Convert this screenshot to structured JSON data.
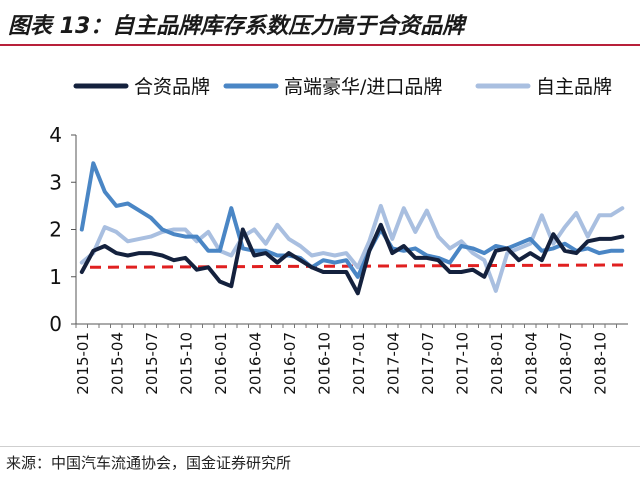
{
  "title": "图表 13：自主品牌库存系数压力高于合资品牌",
  "source": "来源：中国汽车流通协会，国金证券研究所",
  "colors": {
    "title_rule": "#b8203a",
    "reference_line": "#e02020"
  },
  "chart_data": {
    "type": "line",
    "title": "",
    "xlabel": "",
    "ylabel": "",
    "ylim": [
      0,
      4
    ],
    "yticks": [
      "0",
      "1",
      "2",
      "3",
      "4"
    ],
    "grid": false,
    "legend_position": "top",
    "x": [
      "2015-01",
      "2015-02",
      "2015-03",
      "2015-04",
      "2015-05",
      "2015-06",
      "2015-07",
      "2015-08",
      "2015-09",
      "2015-10",
      "2015-11",
      "2015-12",
      "2016-01",
      "2016-02",
      "2016-03",
      "2016-04",
      "2016-05",
      "2016-06",
      "2016-07",
      "2016-08",
      "2016-09",
      "2016-10",
      "2016-11",
      "2016-12",
      "2017-01",
      "2017-02",
      "2017-03",
      "2017-04",
      "2017-05",
      "2017-06",
      "2017-07",
      "2017-08",
      "2017-09",
      "2017-10",
      "2017-11",
      "2017-12",
      "2018-01",
      "2018-02",
      "2018-03",
      "2018-04",
      "2018-05",
      "2018-06",
      "2018-07",
      "2018-08",
      "2018-09",
      "2018-10",
      "2018-11",
      "2018-12"
    ],
    "xtick_labels": [
      "2015-01",
      "2015-04",
      "2015-07",
      "2015-10",
      "2016-01",
      "2016-04",
      "2016-07",
      "2016-10",
      "2017-01",
      "2017-04",
      "2017-07",
      "2017-10",
      "2018-01",
      "2018-04",
      "2018-07",
      "2018-10"
    ],
    "series": [
      {
        "name": "合资品牌",
        "color": "#14213d",
        "values": [
          1.1,
          1.55,
          1.65,
          1.5,
          1.45,
          1.5,
          1.5,
          1.45,
          1.35,
          1.4,
          1.15,
          1.2,
          0.9,
          0.8,
          2.0,
          1.45,
          1.5,
          1.3,
          1.5,
          1.35,
          1.2,
          1.1,
          1.1,
          1.1,
          0.65,
          1.55,
          2.1,
          1.5,
          1.65,
          1.4,
          1.4,
          1.35,
          1.1,
          1.1,
          1.15,
          1.0,
          1.55,
          1.6,
          1.35,
          1.5,
          1.35,
          1.9,
          1.55,
          1.5,
          1.75,
          1.8,
          1.8,
          1.85
        ]
      },
      {
        "name": "高端豪华/进口品牌",
        "color": "#4a86c5",
        "values": [
          2.0,
          3.4,
          2.8,
          2.5,
          2.55,
          2.4,
          2.25,
          2.0,
          1.9,
          1.85,
          1.85,
          1.55,
          1.55,
          2.45,
          1.6,
          1.55,
          1.55,
          1.45,
          1.45,
          1.4,
          1.2,
          1.35,
          1.3,
          1.35,
          1.0,
          1.55,
          2.0,
          1.6,
          1.55,
          1.6,
          1.45,
          1.4,
          1.3,
          1.65,
          1.6,
          1.5,
          1.65,
          1.6,
          1.7,
          1.8,
          1.55,
          1.6,
          1.7,
          1.55,
          1.6,
          1.5,
          1.55,
          1.55
        ]
      },
      {
        "name": "自主品牌",
        "color": "#a9bfe0",
        "values": [
          1.3,
          1.5,
          2.05,
          1.95,
          1.75,
          1.8,
          1.85,
          1.95,
          2.0,
          2.0,
          1.75,
          1.95,
          1.55,
          1.45,
          1.85,
          2.0,
          1.7,
          2.1,
          1.8,
          1.65,
          1.45,
          1.5,
          1.45,
          1.5,
          1.2,
          1.75,
          2.5,
          1.8,
          2.45,
          1.95,
          2.4,
          1.85,
          1.6,
          1.75,
          1.5,
          1.35,
          0.7,
          1.5,
          1.6,
          1.7,
          2.3,
          1.7,
          2.05,
          2.35,
          1.85,
          2.3,
          2.3,
          2.45
        ]
      }
    ],
    "reference_lines": [
      {
        "y": 1.2,
        "y_end": 1.25,
        "style": "dashed",
        "color": "#e02020"
      }
    ]
  }
}
